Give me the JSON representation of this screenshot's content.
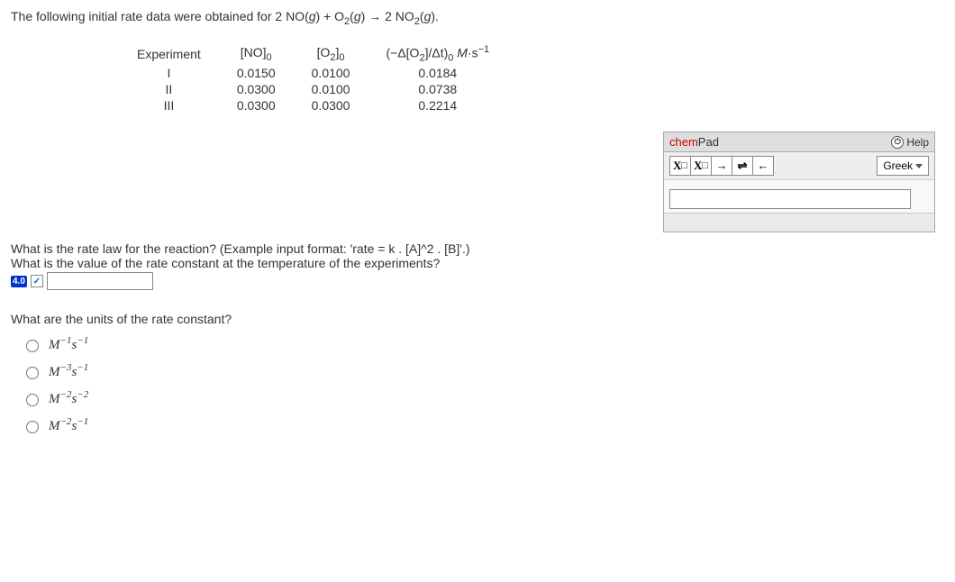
{
  "intro": "The following initial rate data were obtained for 2 NO(g) + O₂(g) → 2 NO₂(g).",
  "table": {
    "headers": {
      "exp": "Experiment",
      "no": "[NO]₀",
      "o2": "[O₂]₀",
      "rate": "(−Δ[O₂]/Δt)₀ M·s⁻¹"
    },
    "rows": [
      {
        "exp": "I",
        "no": "0.0150",
        "o2": "0.0100",
        "rate": "0.0184"
      },
      {
        "exp": "II",
        "no": "0.0300",
        "o2": "0.0100",
        "rate": "0.0738"
      },
      {
        "exp": "III",
        "no": "0.0300",
        "o2": "0.0300",
        "rate": "0.2214"
      }
    ]
  },
  "chempad": {
    "brand_chem": "chem",
    "brand_pad": "Pad",
    "help": "Help",
    "greek": "Greek",
    "tools": {
      "sub": "X",
      "sub_small": "□",
      "sup": "X",
      "sup_small": "□",
      "fwd": "→",
      "equil": "⇌",
      "back": "←"
    },
    "input_value": ""
  },
  "q1": "What is the rate law for the reaction? (Example input format: 'rate = k . [A]^2 . [B]'.)",
  "q2": "What is the value of the rate constant at the temperature of the experiments?",
  "badge": "4.0",
  "k_value": "",
  "units_question": "What are the units of the rate constant?",
  "units_options": [
    "M⁻¹s⁻¹",
    "M⁻³s⁻¹",
    "M⁻²s⁻²",
    "M⁻²s⁻¹"
  ]
}
